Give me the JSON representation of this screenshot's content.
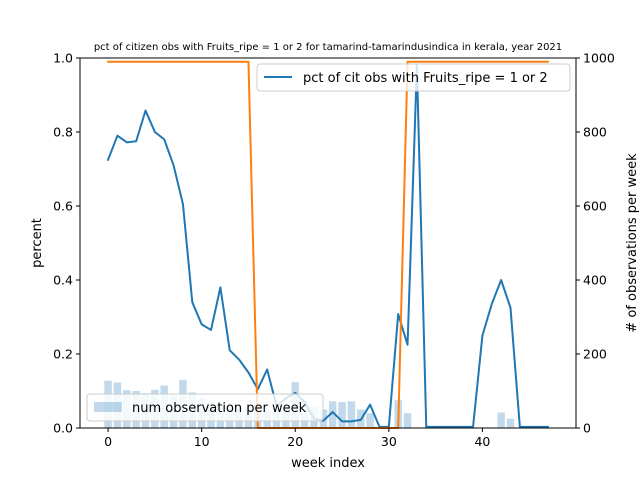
{
  "chart_data": {
    "type": "line",
    "title": "pct of citizen obs with Fruits_ripe = 1 or 2 for tamarind-tamarindusindica in kerala, year 2021",
    "xlabel": "week index",
    "ylabel": "percent",
    "y2label": "# of observations per week",
    "xlim": [
      -3,
      50
    ],
    "ylim": [
      0,
      1.0
    ],
    "y2lim": [
      0,
      1000
    ],
    "xticks": [
      0,
      10,
      20,
      30,
      40
    ],
    "yticks": [
      0.0,
      0.2,
      0.4,
      0.6,
      0.8,
      1.0
    ],
    "y2ticks": [
      0,
      200,
      400,
      600,
      800,
      1000
    ],
    "grid": false,
    "series": [
      {
        "name": "pct of cit obs with Fruits_ripe = 1 or 2",
        "axis": "left",
        "type": "line",
        "color": "#1f77b4",
        "x": [
          0,
          1,
          2,
          3,
          4,
          5,
          6,
          7,
          8,
          9,
          10,
          11,
          12,
          13,
          14,
          15,
          16,
          17,
          18,
          19,
          20,
          21,
          22,
          23,
          24,
          25,
          26,
          27,
          28,
          29,
          30,
          31,
          32,
          33,
          34,
          35,
          36,
          37,
          38,
          39,
          40,
          41,
          42,
          43,
          44,
          45,
          46,
          47
        ],
        "y": [
          0.725,
          0.79,
          0.772,
          0.775,
          0.858,
          0.8,
          0.78,
          0.71,
          0.605,
          0.34,
          0.28,
          0.265,
          0.38,
          0.21,
          0.185,
          0.15,
          0.105,
          0.158,
          0.06,
          0.08,
          0.095,
          0.07,
          0.025,
          0.02,
          0.043,
          0.018,
          0.018,
          0.022,
          0.063,
          0.003,
          0.003,
          0.308,
          0.225,
          0.98,
          0.003,
          0.003,
          0.003,
          0.003,
          0.003,
          0.003,
          0.25,
          0.335,
          0.4,
          0.325,
          0.003,
          0.003,
          0.003,
          0.003
        ]
      },
      {
        "name": "",
        "axis": "left",
        "type": "line",
        "color": "#ff7f0e",
        "x": [
          0,
          15,
          16,
          31,
          32,
          47
        ],
        "y": [
          0.99,
          0.99,
          0.0,
          0.0,
          0.99,
          0.99
        ]
      },
      {
        "name": "num observation per week",
        "axis": "right",
        "type": "bar",
        "color": "#1f77b4",
        "opacity": 0.28,
        "x": [
          0,
          1,
          2,
          3,
          4,
          5,
          6,
          7,
          8,
          9,
          10,
          11,
          12,
          13,
          14,
          15,
          16,
          17,
          18,
          19,
          20,
          21,
          22,
          23,
          24,
          25,
          26,
          27,
          28,
          29,
          30,
          31,
          32,
          33,
          34,
          35,
          36,
          37,
          38,
          39,
          40,
          41,
          42,
          43,
          44,
          45,
          46,
          47
        ],
        "values": [
          128,
          123,
          102,
          100,
          94,
          103,
          115,
          87,
          130,
          96,
          80,
          70,
          64,
          62,
          55,
          50,
          62,
          50,
          48,
          62,
          124,
          72,
          58,
          50,
          72,
          70,
          72,
          50,
          40,
          0,
          0,
          75,
          40,
          0,
          0,
          0,
          0,
          0,
          0,
          0,
          0,
          0,
          42,
          25,
          0,
          0,
          0,
          0
        ]
      }
    ],
    "legends": [
      {
        "placement": "upper-right",
        "entries": [
          "pct of cit obs with Fruits_ripe = 1 or 2"
        ]
      },
      {
        "placement": "lower-left",
        "entries": [
          "num observation per week"
        ]
      }
    ]
  }
}
